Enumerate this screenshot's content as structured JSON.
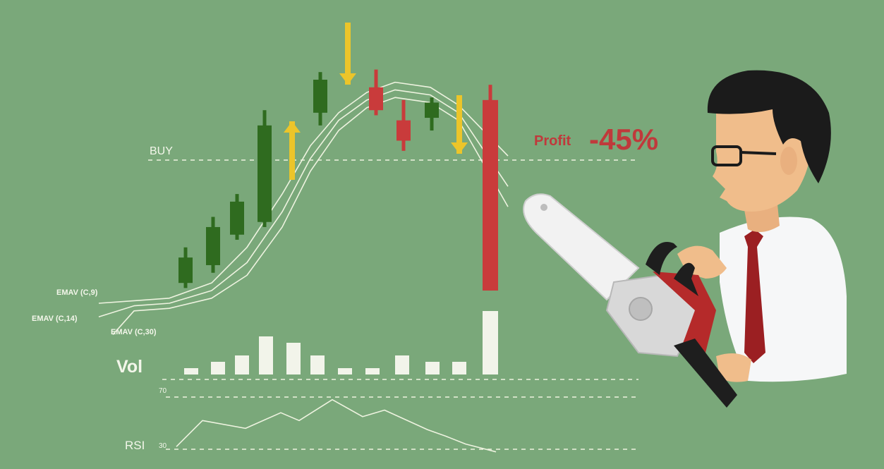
{
  "colors": {
    "background": "#7aa87a",
    "bull": "#2f6b1f",
    "bear": "#c93b3b",
    "signal_arrow": "#ecc52a",
    "line": "#eef3e0",
    "profit_text": "#c0393b",
    "volume_bar": "#f2f4ea"
  },
  "labels": {
    "buy": "BUY",
    "profit_word": "Profit",
    "profit_value": "-45%",
    "vol": "Vol",
    "rsi": "RSI",
    "rsi_high": "70",
    "rsi_low": "30",
    "emav1": "EMAV (C,9)",
    "emav2": "EMAV (C,14)",
    "emav3": "EMAV (C,30)"
  },
  "chart_data": [
    {
      "type": "candlestick",
      "candles": [
        {
          "dir": "up",
          "open": 0.28,
          "close": 0.38,
          "high": 0.42,
          "low": 0.26
        },
        {
          "dir": "up",
          "open": 0.35,
          "close": 0.5,
          "high": 0.54,
          "low": 0.32
        },
        {
          "dir": "up",
          "open": 0.47,
          "close": 0.6,
          "high": 0.63,
          "low": 0.45
        },
        {
          "dir": "up",
          "open": 0.52,
          "close": 0.9,
          "high": 0.96,
          "low": 0.5
        },
        {
          "dir": "up",
          "open": 0.95,
          "close": 1.08,
          "high": 1.11,
          "low": 0.9
        },
        {
          "dir": "down",
          "open": 1.05,
          "close": 0.96,
          "high": 1.12,
          "low": 0.94
        },
        {
          "dir": "down",
          "open": 0.92,
          "close": 0.84,
          "high": 1.0,
          "low": 0.8
        },
        {
          "dir": "up",
          "open": 0.93,
          "close": 0.99,
          "high": 1.01,
          "low": 0.88
        },
        {
          "dir": "down",
          "open": 1.0,
          "close": 0.25,
          "high": 1.06,
          "low": 0.25
        }
      ],
      "signals": [
        {
          "after_candle": 3,
          "direction": "up"
        },
        {
          "after_candle": 4,
          "direction": "down"
        },
        {
          "after_candle": 7,
          "direction": "down"
        }
      ],
      "buy_level": 0.83,
      "ema_series": [
        {
          "name": "EMAV (C,9)",
          "values": [
            0.2,
            0.21,
            0.22,
            0.28,
            0.42,
            0.63,
            0.82,
            0.95,
            1.03,
            1.07,
            1.05,
            0.98,
            0.78
          ]
        },
        {
          "name": "EMAV (C,14)",
          "values": [
            0.18,
            0.19,
            0.2,
            0.25,
            0.36,
            0.56,
            0.77,
            0.92,
            1.0,
            1.04,
            1.02,
            0.95,
            0.66
          ]
        },
        {
          "name": "EMAV (C,30)",
          "values": [
            0.16,
            0.17,
            0.18,
            0.22,
            0.31,
            0.5,
            0.72,
            0.88,
            0.97,
            1.01,
            0.99,
            0.92,
            0.58
          ]
        }
      ]
    },
    {
      "type": "bar",
      "title": "Vol",
      "values": [
        1,
        2,
        3,
        6,
        5,
        3,
        1,
        1,
        3,
        2,
        2,
        10
      ]
    },
    {
      "type": "line",
      "title": "RSI",
      "yticks": [
        30,
        70
      ],
      "values": [
        32,
        52,
        46,
        58,
        52,
        68,
        55,
        60,
        45,
        40,
        34,
        28
      ]
    }
  ]
}
